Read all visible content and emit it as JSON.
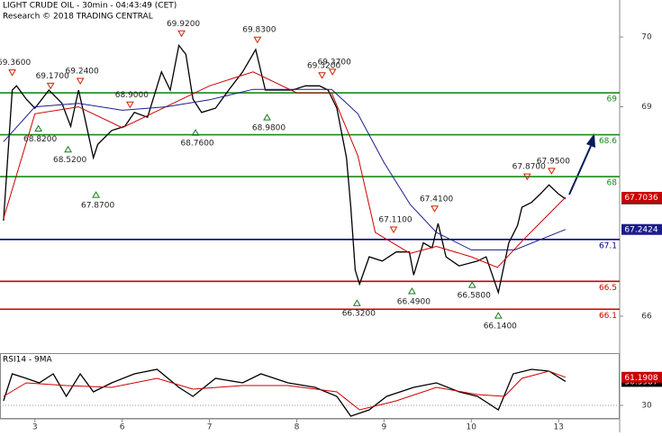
{
  "chart_data": [
    {
      "type": "line",
      "title": "LIGHT CRUDE OIL - 30min - 04:43:49 (CET)",
      "subtitle": "Research © 2018 TRADING CENTRAL",
      "xlim": [
        -0.4,
        6.7
      ],
      "xticks": [
        {
          "value": 0,
          "label": "3"
        },
        {
          "value": 1,
          "label": "6"
        },
        {
          "value": 2,
          "label": "7"
        },
        {
          "value": 3,
          "label": "8"
        },
        {
          "value": 4,
          "label": "9"
        },
        {
          "value": 5,
          "label": "10"
        },
        {
          "value": 6,
          "label": "13"
        }
      ],
      "ylim": [
        65.6,
        70.53
      ],
      "yticks": [
        66,
        69,
        70
      ],
      "series": [
        {
          "color": "#000000",
          "x": [
            -0.36,
            -0.26,
            -0.21,
            -0.1,
            0,
            0.16,
            0.31,
            0.41,
            0.5,
            0.57,
            0.67,
            0.72,
            0.88,
            1.03,
            1.14,
            1.29,
            1.45,
            1.55,
            1.65,
            1.73,
            1.81,
            1.91,
            2.07,
            2.22,
            2.38,
            2.53,
            2.64,
            2.79,
            2.95,
            3.1,
            3.26,
            3.36,
            3.46,
            3.57,
            3.62,
            3.67,
            3.72,
            3.83,
            3.98,
            4.14,
            4.29,
            4.34,
            4.45,
            4.55,
            4.62,
            4.71,
            4.86,
            5.07,
            5.17,
            5.31,
            5.43,
            5.53,
            5.58,
            5.69,
            5.79,
            5.89,
            6.0,
            6.08
          ],
          "values": [
            67.37,
            69.24,
            69.3,
            69.11,
            68.98,
            69.24,
            69.05,
            68.72,
            69.24,
            68.85,
            68.27,
            68.46,
            68.66,
            68.72,
            68.92,
            68.85,
            69.5,
            69.24,
            69.88,
            69.75,
            69.11,
            68.92,
            68.98,
            69.24,
            69.5,
            69.82,
            69.24,
            69.24,
            69.24,
            69.3,
            69.3,
            69.24,
            68.98,
            68.27,
            67.56,
            66.66,
            66.46,
            66.85,
            66.79,
            66.92,
            66.92,
            66.59,
            67.05,
            66.98,
            67.33,
            66.85,
            66.72,
            66.79,
            66.85,
            66.34,
            67.05,
            67.3,
            67.56,
            67.63,
            67.75,
            67.88,
            67.75,
            67.68
          ]
        },
        {
          "color": "#cc0000",
          "x": [
            -0.36,
            0,
            0.5,
            1.0,
            1.5,
            2.0,
            2.5,
            3.0,
            3.4,
            3.7,
            3.9,
            4.3,
            4.6,
            5.0,
            5.3,
            5.6,
            6.08
          ],
          "values": [
            67.4,
            68.9,
            69.0,
            68.7,
            69.0,
            69.3,
            69.5,
            69.2,
            69.2,
            68.3,
            67.2,
            66.9,
            67.0,
            66.85,
            66.7,
            67.1,
            67.7036
          ]
        },
        {
          "color": "#1c1c8c",
          "x": [
            -0.36,
            0,
            0.5,
            1.0,
            1.5,
            2.0,
            2.5,
            3.0,
            3.4,
            3.7,
            4.0,
            4.3,
            4.6,
            5.0,
            5.5,
            6.08
          ],
          "values": [
            68.5,
            69.0,
            69.05,
            68.95,
            69.0,
            69.1,
            69.25,
            69.25,
            69.25,
            68.9,
            68.2,
            67.6,
            67.2,
            66.95,
            66.95,
            67.2424
          ]
        }
      ],
      "levels": [
        {
          "value": 69.2,
          "label": "69",
          "color": "#1a8a1a"
        },
        {
          "value": 68.6,
          "label": "68.6",
          "color": "#1a8a1a"
        },
        {
          "value": 68.0,
          "label": "68",
          "color": "#1a8a1a"
        },
        {
          "value": 67.1,
          "label": "67.1",
          "color": "#00007f"
        },
        {
          "value": 66.5,
          "label": "66.5",
          "color": "#cc0000"
        },
        {
          "value": 66.1,
          "label": "66.1",
          "color": "#cc0000"
        }
      ],
      "annotations": [
        {
          "label": "69.3600",
          "value": 69.36,
          "x": -0.26,
          "marker": "down"
        },
        {
          "label": "69.1700",
          "value": 69.17,
          "x": 0.18,
          "marker": "down"
        },
        {
          "label": "69.2400",
          "value": 69.24,
          "x": 0.52,
          "marker": "down"
        },
        {
          "label": "68.9000",
          "value": 68.9,
          "x": 1.09,
          "marker": "down"
        },
        {
          "label": "69.9200",
          "value": 69.92,
          "x": 1.68,
          "marker": "down"
        },
        {
          "label": "69.8300",
          "value": 69.83,
          "x": 2.55,
          "marker": "down"
        },
        {
          "label": "69.3200",
          "value": 69.32,
          "x": 3.29,
          "marker": "down"
        },
        {
          "label": "69.3700",
          "value": 69.37,
          "x": 3.41,
          "marker": "down"
        },
        {
          "label": "67.1100",
          "value": 67.11,
          "x": 4.11,
          "marker": "down"
        },
        {
          "label": "67.4100",
          "value": 67.41,
          "x": 4.58,
          "marker": "down"
        },
        {
          "label": "67.8700",
          "value": 67.87,
          "x": 5.64,
          "marker": "down"
        },
        {
          "label": "67.9500",
          "value": 67.95,
          "x": 5.92,
          "marker": "down"
        },
        {
          "label": "68.8200",
          "value": 68.82,
          "x": 0.04,
          "marker": "up"
        },
        {
          "label": "68.5200",
          "value": 68.52,
          "x": 0.38,
          "marker": "up"
        },
        {
          "label": "67.8700",
          "value": 67.87,
          "x": 0.7,
          "marker": "up"
        },
        {
          "label": "68.7600",
          "value": 68.76,
          "x": 1.84,
          "marker": "up"
        },
        {
          "label": "68.9800",
          "value": 68.98,
          "x": 2.66,
          "marker": "up"
        },
        {
          "label": "66.3200",
          "value": 66.32,
          "x": 3.69,
          "marker": "up"
        },
        {
          "label": "66.4900",
          "value": 66.49,
          "x": 4.32,
          "marker": "up"
        },
        {
          "label": "66.5800",
          "value": 66.58,
          "x": 5.01,
          "marker": "up"
        },
        {
          "label": "66.1400",
          "value": 66.14,
          "x": 5.31,
          "marker": "up"
        }
      ]
    },
    {
      "type": "line",
      "title": "RSI14 - 9MA",
      "xlim": [
        -0.4,
        6.7
      ],
      "ylim": [
        15,
        88
      ],
      "yticks": [
        30
      ],
      "series": [
        {
          "color": "#000000",
          "x": [
            -0.36,
            -0.26,
            -0.1,
            0.05,
            0.21,
            0.36,
            0.52,
            0.67,
            0.88,
            1.14,
            1.4,
            1.65,
            1.81,
            2.07,
            2.38,
            2.59,
            2.9,
            3.21,
            3.46,
            3.62,
            3.83,
            4.03,
            4.34,
            4.6,
            4.86,
            5.07,
            5.31,
            5.48,
            5.69,
            5.89,
            6.08
          ],
          "values": [
            35,
            65,
            60,
            55,
            65,
            40,
            65,
            45,
            55,
            65,
            70,
            50,
            40,
            60,
            55,
            65,
            55,
            50,
            40,
            18,
            25,
            40,
            50,
            55,
            45,
            40,
            25,
            65,
            70,
            68,
            56.5987
          ]
        },
        {
          "color": "#cc0000",
          "x": [
            -0.36,
            -0.1,
            0.36,
            0.88,
            1.4,
            1.81,
            2.38,
            2.9,
            3.46,
            3.72,
            4.14,
            4.6,
            5.07,
            5.38,
            5.58,
            5.89,
            6.08
          ],
          "values": [
            40,
            55,
            52,
            50,
            60,
            48,
            52,
            52,
            45,
            25,
            35,
            50,
            42,
            40,
            60,
            68,
            61.1908
          ]
        }
      ]
    }
  ]
}
